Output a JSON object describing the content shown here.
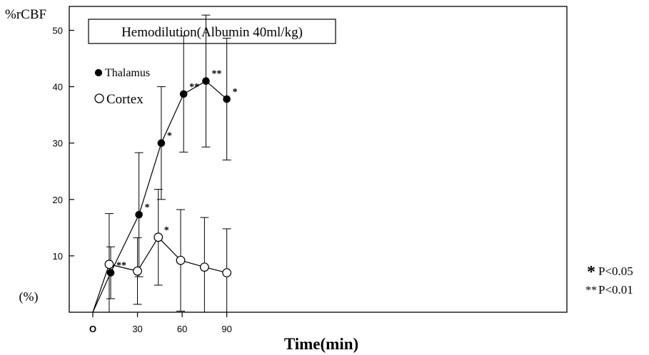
{
  "chart_data": {
    "type": "line",
    "title": "Hemodilution(Albumin 40ml/kg)",
    "ylabel_top": "%rCBF",
    "ylabel_unit": "(%)",
    "xlabel": "Time(min)",
    "xlim": [
      0,
      100
    ],
    "ylim": [
      0,
      52
    ],
    "xticks": [
      {
        "value": 0,
        "label": "O"
      },
      {
        "value": 30,
        "label": "30"
      },
      {
        "value": 60,
        "label": "60"
      },
      {
        "value": 90,
        "label": "90"
      }
    ],
    "yticks": [
      {
        "value": 10,
        "label": "10"
      },
      {
        "value": 20,
        "label": "20"
      },
      {
        "value": 30,
        "label": "30"
      },
      {
        "value": 40,
        "label": "40"
      },
      {
        "value": 50,
        "label": "50"
      }
    ],
    "legend_position": "top-left",
    "series": [
      {
        "name": "Thalamus",
        "marker": "filled",
        "color": "#000000",
        "points": [
          {
            "x": 0,
            "y": 0,
            "err": null,
            "sig": ""
          },
          {
            "x": 12,
            "y": 7.0,
            "err": 4.6,
            "sig": "**"
          },
          {
            "x": 31,
            "y": 17.3,
            "err": 11.0,
            "sig": "*"
          },
          {
            "x": 46,
            "y": 30.0,
            "err": 10.0,
            "sig": "*"
          },
          {
            "x": 61,
            "y": 38.7,
            "err": 10.3,
            "sig": "**"
          },
          {
            "x": 76,
            "y": 41.0,
            "err": 11.7,
            "sig": "**"
          },
          {
            "x": 90,
            "y": 37.8,
            "err": 10.8,
            "sig": "*"
          }
        ]
      },
      {
        "name": "Cortex",
        "marker": "open",
        "color": "#000000",
        "points": [
          {
            "x": 0,
            "y": 0,
            "err": null,
            "sig": ""
          },
          {
            "x": 11,
            "y": 8.5,
            "err": 9.0,
            "sig": ""
          },
          {
            "x": 30,
            "y": 7.3,
            "err": 5.9,
            "sig": ""
          },
          {
            "x": 44,
            "y": 13.3,
            "err": 8.5,
            "sig": "*"
          },
          {
            "x": 59,
            "y": 9.2,
            "err": 9.0,
            "sig": ""
          },
          {
            "x": 75,
            "y": 8.0,
            "err": 8.8,
            "sig": ""
          },
          {
            "x": 90,
            "y": 7.0,
            "err": 7.8,
            "sig": ""
          }
        ]
      }
    ],
    "significance_legend": [
      {
        "symbol": "*",
        "text": "P<0.05"
      },
      {
        "symbol": "**",
        "text": "P<0.01"
      }
    ]
  }
}
